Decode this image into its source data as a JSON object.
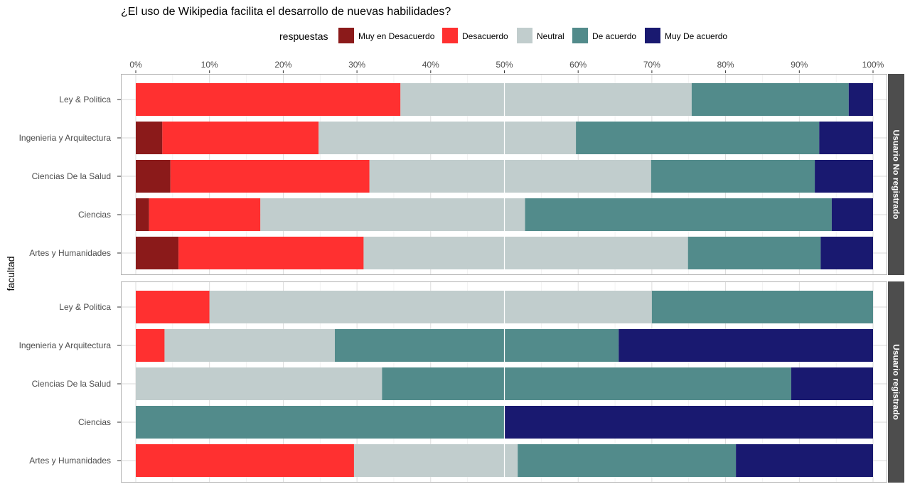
{
  "chart_data": {
    "type": "bar",
    "orientation": "horizontal",
    "stacked": "percent",
    "title": "¿El uso de Wikipedia facilita el desarrollo de nuevas habilidades?",
    "ylabel": "facultad",
    "xlabel": "",
    "xlim": [
      0,
      100
    ],
    "x_ticks": [
      "0%",
      "10%",
      "20%",
      "30%",
      "40%",
      "50%",
      "60%",
      "70%",
      "80%",
      "90%",
      "100%"
    ],
    "grid": true,
    "legend": {
      "title": "respuestas",
      "position": "top",
      "entries": [
        "Muy en Desacuerdo",
        "Desacuerdo",
        "Neutral",
        "De acuerdo",
        "Muy De acuerdo"
      ]
    },
    "colors": {
      "Muy en Desacuerdo": "#8B1A1A",
      "Desacuerdo": "#FF3030",
      "Neutral": "#C1CDCD",
      "De acuerdo": "#528B8B",
      "Muy De acuerdo": "#191970"
    },
    "categories": [
      "Ley & Politica",
      "Ingenieria y Arquitectura",
      "Ciencias De la Salud",
      "Ciencias",
      "Artes y Humanidades"
    ],
    "panels": [
      {
        "name": "Usuario No registrado",
        "series": [
          {
            "name": "Muy en Desacuerdo",
            "values": [
              0.0,
              3.6,
              4.7,
              1.8,
              5.8
            ]
          },
          {
            "name": "Desacuerdo",
            "values": [
              35.9,
              21.2,
              27.0,
              15.1,
              25.1
            ]
          },
          {
            "name": "Neutral",
            "values": [
              39.5,
              34.9,
              38.2,
              35.9,
              44.0
            ]
          },
          {
            "name": "De acuerdo",
            "values": [
              21.3,
              33.0,
              22.2,
              41.6,
              18.0
            ]
          },
          {
            "name": "Muy De acuerdo",
            "values": [
              3.3,
              7.3,
              7.9,
              5.6,
              7.1
            ]
          }
        ]
      },
      {
        "name": "Usuario registrado",
        "series": [
          {
            "name": "Muy en Desacuerdo",
            "values": [
              0.0,
              0.0,
              0.0,
              0.0,
              0.0
            ]
          },
          {
            "name": "Desacuerdo",
            "values": [
              10.0,
              3.9,
              0.0,
              0.0,
              29.6
            ]
          },
          {
            "name": "Neutral",
            "values": [
              60.0,
              23.1,
              33.4,
              0.0,
              22.2
            ]
          },
          {
            "name": "De acuerdo",
            "values": [
              30.0,
              38.5,
              55.5,
              50.0,
              29.6
            ]
          },
          {
            "name": "Muy De acuerdo",
            "values": [
              0.0,
              34.5,
              11.1,
              50.0,
              18.6
            ]
          }
        ]
      }
    ]
  }
}
